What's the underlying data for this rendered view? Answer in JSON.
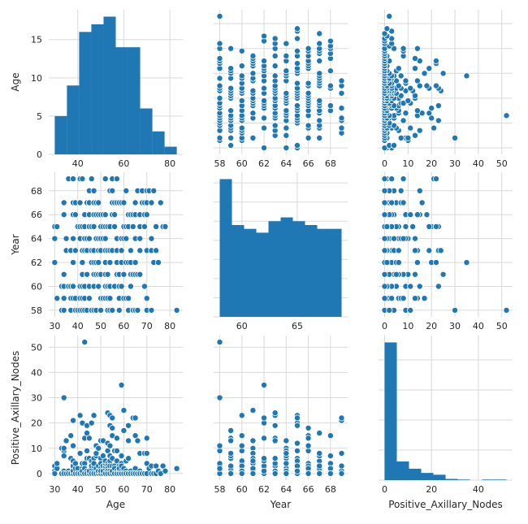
{
  "chart_data": {
    "type": "pairplot",
    "variables": [
      "Age",
      "Year",
      "Positive_Axillary_Nodes"
    ],
    "axis_labels": {
      "x": [
        "Age",
        "Year",
        "Positive_Axillary_Nodes"
      ],
      "y": [
        "Age",
        "Year",
        "Positive_Axillary_Nodes"
      ]
    },
    "ranges": {
      "Age": [
        27.4,
        85.6
      ],
      "Year": [
        57.45,
        69.55
      ],
      "Positive_Axillary_Nodes": [
        -2.6,
        54.6
      ]
    },
    "ticks": {
      "Age": [
        30,
        40,
        50,
        60,
        70,
        80
      ],
      "Year": [
        58,
        60,
        62,
        64,
        66,
        68
      ],
      "Positive_Axillary_Nodes": [
        0,
        10,
        20,
        30,
        40,
        50
      ]
    },
    "diag_ticks_x": {
      "Age": [
        40,
        60,
        80
      ],
      "Year": [
        60,
        65
      ],
      "Positive_Axillary_Nodes": [
        0,
        20,
        40
      ]
    },
    "grid": true,
    "colors": {
      "marker": "#1f77b4",
      "marker_edge": "#ffffff",
      "grid": "#d9d9d9",
      "text": "#262626"
    },
    "histograms": {
      "Age": {
        "edges": [
          30,
          35.3,
          40.6,
          45.9,
          51.2,
          56.5,
          61.8,
          67.1,
          72.4,
          77.7,
          83
        ],
        "counts": [
          5,
          9,
          16,
          17,
          18,
          14,
          14,
          6,
          3,
          1
        ]
      },
      "Year": {
        "edges": [
          58,
          59.1,
          60.2,
          61.3,
          62.4,
          63.5,
          64.6,
          65.7,
          66.8,
          67.9,
          69
        ],
        "counts": [
          36,
          24,
          23,
          22,
          25,
          26,
          25,
          24,
          23,
          23
        ]
      },
      "Positive_Axillary_Nodes": {
        "edges": [
          0,
          5.2,
          10.4,
          15.6,
          20.8,
          26,
          31.2,
          36.4,
          41.6,
          46.8,
          52
        ],
        "counts": [
          229,
          31,
          19,
          12,
          9,
          2,
          1,
          0,
          1,
          1
        ]
      }
    },
    "points": [
      [
        30,
        64,
        1
      ],
      [
        30,
        62,
        3
      ],
      [
        30,
        65,
        0
      ],
      [
        31,
        59,
        2
      ],
      [
        31,
        65,
        4
      ],
      [
        33,
        58,
        10
      ],
      [
        33,
        60,
        0
      ],
      [
        34,
        59,
        0
      ],
      [
        34,
        66,
        9
      ],
      [
        34,
        58,
        30
      ],
      [
        34,
        60,
        1
      ],
      [
        34,
        61,
        10
      ],
      [
        34,
        67,
        7
      ],
      [
        34,
        60,
        0
      ],
      [
        35,
        64,
        13
      ],
      [
        35,
        63,
        0
      ],
      [
        36,
        60,
        1
      ],
      [
        36,
        69,
        0
      ],
      [
        37,
        60,
        0
      ],
      [
        37,
        63,
        0
      ],
      [
        37,
        58,
        0
      ],
      [
        37,
        59,
        6
      ],
      [
        37,
        60,
        15
      ],
      [
        37,
        63,
        0
      ],
      [
        38,
        69,
        21
      ],
      [
        38,
        59,
        2
      ],
      [
        38,
        60,
        0
      ],
      [
        38,
        60,
        0
      ],
      [
        38,
        62,
        3
      ],
      [
        38,
        64,
        1
      ],
      [
        38,
        66,
        0
      ],
      [
        38,
        66,
        11
      ],
      [
        38,
        60,
        1
      ],
      [
        38,
        67,
        5
      ],
      [
        39,
        66,
        0
      ],
      [
        39,
        63,
        0
      ],
      [
        39,
        67,
        0
      ],
      [
        39,
        58,
        0
      ],
      [
        39,
        59,
        2
      ],
      [
        39,
        63,
        4
      ],
      [
        40,
        58,
        2
      ],
      [
        40,
        58,
        0
      ],
      [
        40,
        65,
        0
      ],
      [
        41,
        60,
        23
      ],
      [
        41,
        64,
        0
      ],
      [
        41,
        67,
        0
      ],
      [
        41,
        58,
        0
      ],
      [
        41,
        59,
        8
      ],
      [
        41,
        59,
        0
      ],
      [
        41,
        64,
        0
      ],
      [
        41,
        69,
        8
      ],
      [
        41,
        65,
        0
      ],
      [
        42,
        69,
        1
      ],
      [
        42,
        59,
        0
      ],
      [
        42,
        58,
        0
      ],
      [
        42,
        60,
        1
      ],
      [
        42,
        59,
        2
      ],
      [
        42,
        61,
        4
      ],
      [
        42,
        62,
        20
      ],
      [
        42,
        65,
        0
      ],
      [
        42,
        63,
        1
      ],
      [
        43,
        58,
        52
      ],
      [
        43,
        59,
        2
      ],
      [
        43,
        64,
        0
      ],
      [
        43,
        60,
        0
      ],
      [
        43,
        63,
        14
      ],
      [
        43,
        65,
        2
      ],
      [
        43,
        66,
        4
      ],
      [
        43,
        64,
        2
      ],
      [
        43,
        64,
        0
      ],
      [
        44,
        64,
        6
      ],
      [
        44,
        58,
        9
      ],
      [
        44,
        63,
        19
      ],
      [
        44,
        61,
        0
      ],
      [
        44,
        63,
        1
      ],
      [
        44,
        61,
        0
      ],
      [
        44,
        67,
        16
      ],
      [
        45,
        65,
        6
      ],
      [
        45,
        66,
        0
      ],
      [
        45,
        67,
        1
      ],
      [
        45,
        60,
        0
      ],
      [
        45,
        67,
        0
      ],
      [
        45,
        59,
        14
      ],
      [
        45,
        64,
        0
      ],
      [
        45,
        68,
        0
      ],
      [
        45,
        67,
        1
      ],
      [
        46,
        58,
        2
      ],
      [
        46,
        69,
        3
      ],
      [
        46,
        62,
        5
      ],
      [
        46,
        65,
        20
      ],
      [
        46,
        62,
        0
      ],
      [
        46,
        58,
        3
      ],
      [
        46,
        63,
        0
      ],
      [
        47,
        63,
        23
      ],
      [
        47,
        62,
        0
      ],
      [
        47,
        65,
        0
      ],
      [
        47,
        61,
        0
      ],
      [
        47,
        63,
        6
      ],
      [
        47,
        66,
        0
      ],
      [
        47,
        67,
        0
      ],
      [
        47,
        58,
        3
      ],
      [
        47,
        60,
        4
      ],
      [
        47,
        68,
        4
      ],
      [
        48,
        58,
        11
      ],
      [
        48,
        58,
        11
      ],
      [
        48,
        67,
        7
      ],
      [
        48,
        61,
        8
      ],
      [
        48,
        62,
        2
      ],
      [
        48,
        64,
        0
      ],
      [
        48,
        66,
        0
      ],
      [
        49,
        63,
        0
      ],
      [
        49,
        64,
        10
      ],
      [
        49,
        61,
        1
      ],
      [
        49,
        62,
        0
      ],
      [
        49,
        66,
        0
      ],
      [
        49,
        60,
        1
      ],
      [
        49,
        62,
        1
      ],
      [
        49,
        63,
        3
      ],
      [
        49,
        61,
        0
      ],
      [
        49,
        67,
        1
      ],
      [
        50,
        63,
        13
      ],
      [
        50,
        64,
        0
      ],
      [
        50,
        59,
        0
      ],
      [
        50,
        61,
        6
      ],
      [
        50,
        61,
        0
      ],
      [
        50,
        63,
        1
      ],
      [
        50,
        58,
        1
      ],
      [
        50,
        59,
        2
      ],
      [
        50,
        61,
        0
      ],
      [
        50,
        64,
        0
      ],
      [
        50,
        65,
        4
      ],
      [
        50,
        66,
        1
      ],
      [
        51,
        59,
        13
      ],
      [
        51,
        59,
        3
      ],
      [
        51,
        64,
        7
      ],
      [
        51,
        59,
        1
      ],
      [
        51,
        65,
        0
      ],
      [
        51,
        66,
        1
      ],
      [
        52,
        69,
        3
      ],
      [
        52,
        59,
        2
      ],
      [
        52,
        62,
        3
      ],
      [
        52,
        66,
        4
      ],
      [
        52,
        61,
        0
      ],
      [
        52,
        63,
        4
      ],
      [
        52,
        69,
        0
      ],
      [
        52,
        60,
        4
      ],
      [
        52,
        60,
        5
      ],
      [
        52,
        62,
        0
      ],
      [
        52,
        64,
        0
      ],
      [
        52,
        65,
        0
      ],
      [
        53,
        58,
        4
      ],
      [
        53,
        65,
        1
      ],
      [
        53,
        59,
        3
      ],
      [
        53,
        60,
        9
      ],
      [
        53,
        63,
        24
      ],
      [
        53,
        65,
        12
      ],
      [
        53,
        58,
        1
      ],
      [
        53,
        60,
        1
      ],
      [
        53,
        60,
        2
      ],
      [
        53,
        61,
        1
      ],
      [
        53,
        63,
        0
      ],
      [
        54,
        60,
        11
      ],
      [
        54,
        65,
        23
      ],
      [
        54,
        65,
        5
      ],
      [
        54,
        68,
        7
      ],
      [
        54,
        59,
        7
      ],
      [
        54,
        60,
        3
      ],
      [
        54,
        62,
        0
      ],
      [
        54,
        63,
        19
      ],
      [
        54,
        58,
        1
      ],
      [
        54,
        62,
        0
      ],
      [
        55,
        63,
        6
      ],
      [
        55,
        68,
        15
      ],
      [
        55,
        58,
        1
      ],
      [
        55,
        58,
        1
      ],
      [
        55,
        66,
        18
      ],
      [
        55,
        66,
        0
      ],
      [
        55,
        69,
        3
      ],
      [
        55,
        69,
        22
      ],
      [
        55,
        67,
        1
      ],
      [
        56,
        65,
        9
      ],
      [
        56,
        66,
        3
      ],
      [
        56,
        60,
        0
      ],
      [
        56,
        66,
        2
      ],
      [
        56,
        67,
        0
      ],
      [
        56,
        60,
        0
      ],
      [
        57,
        61,
        5
      ],
      [
        57,
        62,
        14
      ],
      [
        57,
        64,
        1
      ],
      [
        57,
        64,
        9
      ],
      [
        57,
        69,
        0
      ],
      [
        57,
        61,
        0
      ],
      [
        57,
        62,
        0
      ],
      [
        57,
        63,
        0
      ],
      [
        57,
        64,
        0
      ],
      [
        57,
        64,
        0
      ],
      [
        57,
        67,
        0
      ],
      [
        58,
        59,
        0
      ],
      [
        58,
        60,
        3
      ],
      [
        58,
        61,
        1
      ],
      [
        58,
        67,
        0
      ],
      [
        58,
        58,
        0
      ],
      [
        58,
        58,
        3
      ],
      [
        58,
        61,
        2
      ],
      [
        59,
        62,
        35
      ],
      [
        59,
        60,
        0
      ],
      [
        59,
        63,
        0
      ],
      [
        59,
        64,
        1
      ],
      [
        59,
        64,
        4
      ],
      [
        59,
        64,
        0
      ],
      [
        59,
        64,
        7
      ],
      [
        59,
        67,
        3
      ],
      [
        60,
        59,
        17
      ],
      [
        60,
        65,
        0
      ],
      [
        60,
        61,
        1
      ],
      [
        60,
        67,
        2
      ],
      [
        60,
        61,
        25
      ],
      [
        60,
        64,
        0
      ],
      [
        61,
        62,
        5
      ],
      [
        61,
        65,
        0
      ],
      [
        61,
        68,
        1
      ],
      [
        61,
        59,
        0
      ],
      [
        61,
        64,
        0
      ],
      [
        61,
        68,
        0
      ],
      [
        62,
        59,
        13
      ],
      [
        62,
        58,
        0
      ],
      [
        62,
        65,
        19
      ],
      [
        62,
        62,
        6
      ],
      [
        62,
        66,
        0
      ],
      [
        62,
        66,
        0
      ],
      [
        62,
        58,
        0
      ],
      [
        63,
        60,
        1
      ],
      [
        63,
        61,
        0
      ],
      [
        63,
        62,
        0
      ],
      [
        63,
        63,
        0
      ],
      [
        63,
        63,
        0
      ],
      [
        63,
        66,
        0
      ],
      [
        64,
        61,
        0
      ],
      [
        64,
        65,
        22
      ],
      [
        64,
        66,
        0
      ],
      [
        64,
        61,
        0
      ],
      [
        64,
        58,
        0
      ],
      [
        65,
        58,
        0
      ],
      [
        65,
        61,
        2
      ],
      [
        65,
        62,
        22
      ],
      [
        65,
        66,
        15
      ],
      [
        65,
        58,
        0
      ],
      [
        65,
        64,
        0
      ],
      [
        65,
        67,
        0
      ],
      [
        66,
        58,
        0
      ],
      [
        66,
        61,
        13
      ],
      [
        66,
        58,
        0
      ],
      [
        66,
        68,
        0
      ],
      [
        67,
        64,
        8
      ],
      [
        67,
        63,
        1
      ],
      [
        67,
        66,
        0
      ],
      [
        67,
        66,
        0
      ],
      [
        67,
        61,
        0
      ],
      [
        67,
        65,
        0
      ],
      [
        68,
        67,
        0
      ],
      [
        68,
        68,
        0
      ],
      [
        69,
        67,
        8
      ],
      [
        69,
        60,
        0
      ],
      [
        69,
        65,
        0
      ],
      [
        69,
        66,
        0
      ],
      [
        70,
        58,
        0
      ],
      [
        70,
        58,
        4
      ],
      [
        70,
        66,
        14
      ],
      [
        70,
        67,
        0
      ],
      [
        70,
        68,
        0
      ],
      [
        70,
        59,
        8
      ],
      [
        70,
        63,
        0
      ],
      [
        71,
        68,
        2
      ],
      [
        72,
        63,
        0
      ],
      [
        72,
        58,
        0
      ],
      [
        72,
        64,
        0
      ],
      [
        72,
        67,
        3
      ],
      [
        73,
        62,
        0
      ],
      [
        73,
        68,
        0
      ],
      [
        74,
        65,
        3
      ],
      [
        74,
        63,
        0
      ],
      [
        75,
        62,
        1
      ],
      [
        76,
        67,
        0
      ],
      [
        77,
        65,
        3
      ],
      [
        78,
        65,
        1
      ],
      [
        83,
        58,
        2
      ]
    ]
  }
}
